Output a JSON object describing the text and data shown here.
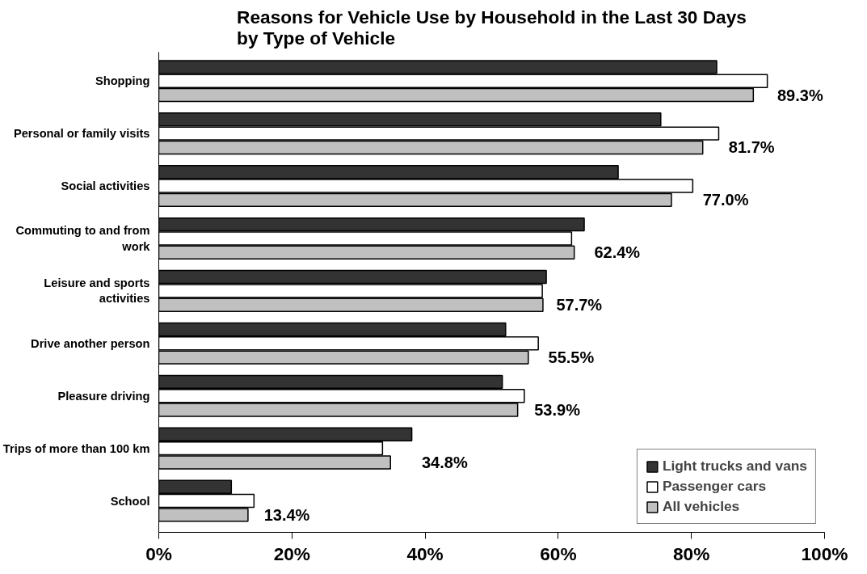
{
  "chart_data": {
    "type": "bar",
    "orientation": "horizontal",
    "title": "Reasons for Vehicle Use by Household in the Last 30 Days by Type of Vehicle",
    "categories": [
      "Shopping",
      "Personal or family visits",
      "Social activities",
      "Commuting to and from work",
      "Leisure and sports activities",
      "Drive another person",
      "Pleasure driving",
      "Trips of more than 100 km",
      "School"
    ],
    "series": [
      {
        "name": "Light trucks and vans",
        "color": "#333333",
        "values": [
          83.8,
          75.4,
          69.0,
          63.9,
          58.2,
          52.1,
          51.6,
          38.0,
          10.9
        ]
      },
      {
        "name": "Passenger cars",
        "color": "#ffffff",
        "values": [
          91.4,
          84.1,
          80.2,
          62.0,
          57.6,
          57.0,
          54.9,
          33.6,
          14.3
        ]
      },
      {
        "name": "All vehicles",
        "color": "#c0c0c0",
        "values": [
          89.3,
          81.7,
          77.0,
          62.4,
          57.7,
          55.5,
          53.9,
          34.8,
          13.4
        ],
        "value_labels": [
          "89.3%",
          "81.7%",
          "77.0%",
          "62.4%",
          "57.7%",
          "55.5%",
          "53.9%",
          "34.8%",
          "13.4%"
        ]
      }
    ],
    "xlim": [
      0,
      100
    ],
    "xticks": [
      {
        "value": 0,
        "label": "0%"
      },
      {
        "value": 20,
        "label": "20%"
      },
      {
        "value": 40,
        "label": "40%"
      },
      {
        "value": 60,
        "label": "60%"
      },
      {
        "value": 80,
        "label": "80%"
      },
      {
        "value": 100,
        "label": "100%"
      }
    ],
    "grid": false,
    "legend": "bottom right"
  }
}
